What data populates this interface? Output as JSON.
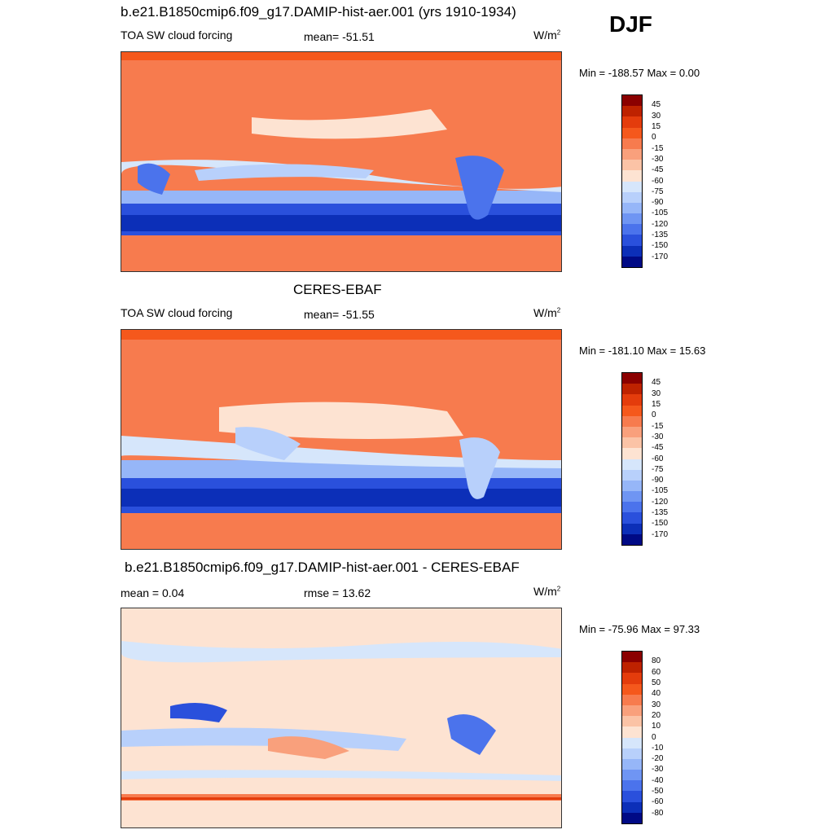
{
  "season": "DJF",
  "panels": [
    {
      "title": "b.e21.B1850cmip6.f09_g17.DAMIP-hist-aer.001 (yrs 1910-1934)",
      "left_label": "TOA SW cloud forcing",
      "center_label": "mean= -51.51",
      "units": "W/m",
      "units_sup": "2",
      "minmax": "Min = -188.57 Max =    0.00",
      "colorbar": {
        "labels": [
          "45",
          "30",
          "15",
          "0",
          "-15",
          "-30",
          "-45",
          "-60",
          "-75",
          "-90",
          "-105",
          "-120",
          "-135",
          "-150",
          "-170"
        ],
        "colors": [
          "#8b0000",
          "#be2200",
          "#e43c0c",
          "#f5581c",
          "#f77b4e",
          "#f9a07c",
          "#fbc3a6",
          "#fde3d2",
          "#d6e6fb",
          "#b8d0fb",
          "#96b6f8",
          "#6f95f3",
          "#4b73ec",
          "#2a50dc",
          "#0c2fb8",
          "#000a85"
        ]
      }
    },
    {
      "title": "CERES-EBAF",
      "left_label": "TOA SW cloud forcing",
      "center_label": "mean= -51.55",
      "units": "W/m",
      "units_sup": "2",
      "minmax": "Min = -181.10 Max =  15.63",
      "colorbar": {
        "labels": [
          "45",
          "30",
          "15",
          "0",
          "-15",
          "-30",
          "-45",
          "-60",
          "-75",
          "-90",
          "-105",
          "-120",
          "-135",
          "-150",
          "-170"
        ],
        "colors": [
          "#8b0000",
          "#be2200",
          "#e43c0c",
          "#f5581c",
          "#f77b4e",
          "#f9a07c",
          "#fbc3a6",
          "#fde3d2",
          "#d6e6fb",
          "#b8d0fb",
          "#96b6f8",
          "#6f95f3",
          "#4b73ec",
          "#2a50dc",
          "#0c2fb8",
          "#000a85"
        ]
      }
    },
    {
      "title": "b.e21.B1850cmip6.f09_g17.DAMIP-hist-aer.001 - CERES-EBAF",
      "left_label": "mean =   0.04",
      "center_label": "rmse =  13.62",
      "units": "W/m",
      "units_sup": "2",
      "minmax": "Min = -75.96 Max =  97.33",
      "colorbar": {
        "labels": [
          "80",
          "60",
          "50",
          "40",
          "30",
          "20",
          "10",
          "0",
          "-10",
          "-20",
          "-30",
          "-40",
          "-50",
          "-60",
          "-80"
        ],
        "colors": [
          "#8b0000",
          "#be2200",
          "#e43c0c",
          "#f5581c",
          "#f77b4e",
          "#f9a07c",
          "#fbc3a6",
          "#fde3d2",
          "#d6e6fb",
          "#b8d0fb",
          "#96b6f8",
          "#6f95f3",
          "#4b73ec",
          "#2a50dc",
          "#0c2fb8",
          "#000a85"
        ]
      }
    }
  ]
}
